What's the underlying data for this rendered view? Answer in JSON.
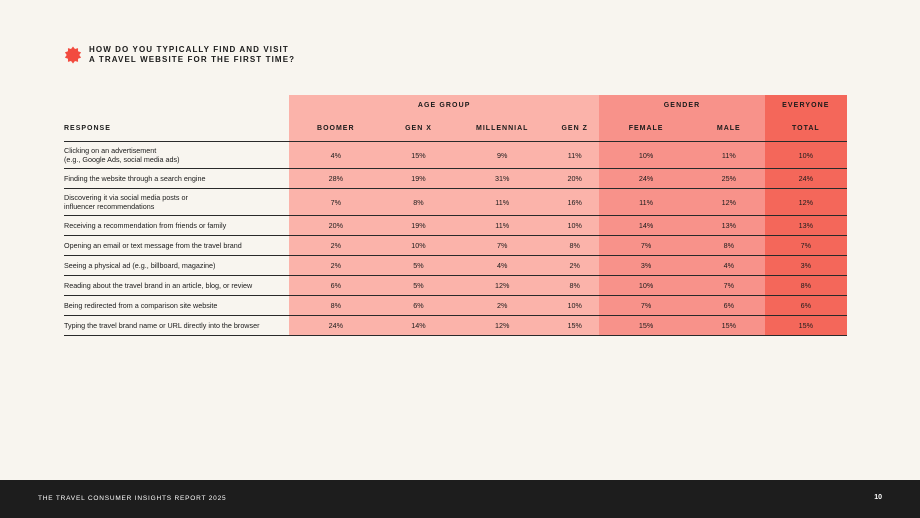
{
  "title": "HOW DO YOU TYPICALLY FIND AND VISIT\nA TRAVEL WEBSITE FOR THE FIRST TIME?",
  "groups": {
    "age": "AGE GROUP",
    "gender": "GENDER",
    "everyone": "EVERYONE"
  },
  "columns": [
    "RESPONSE",
    "BOOMER",
    "GEN X",
    "MILLENNIAL",
    "GEN Z",
    "FEMALE",
    "MALE",
    "TOTAL"
  ],
  "rows": [
    {
      "label": "Clicking on an advertisement\n(e.g., Google Ads, social media ads)",
      "values": [
        "4%",
        "15%",
        "9%",
        "11%",
        "10%",
        "11%",
        "10%"
      ]
    },
    {
      "label": "Finding the website through a search engine",
      "values": [
        "28%",
        "19%",
        "31%",
        "20%",
        "24%",
        "25%",
        "24%"
      ]
    },
    {
      "label": "Discovering it via social media posts or\ninfluencer recommendations",
      "values": [
        "7%",
        "8%",
        "11%",
        "16%",
        "11%",
        "12%",
        "12%"
      ]
    },
    {
      "label": "Receiving a recommendation from friends or family",
      "values": [
        "20%",
        "19%",
        "11%",
        "10%",
        "14%",
        "13%",
        "13%"
      ]
    },
    {
      "label": "Opening an email or text message from the travel brand",
      "values": [
        "2%",
        "10%",
        "7%",
        "8%",
        "7%",
        "8%",
        "7%"
      ]
    },
    {
      "label": "Seeing a physical ad (e.g., billboard, magazine)",
      "values": [
        "2%",
        "5%",
        "4%",
        "2%",
        "3%",
        "4%",
        "3%"
      ]
    },
    {
      "label": "Reading about the travel brand in an article, blog, or review",
      "values": [
        "6%",
        "5%",
        "12%",
        "8%",
        "10%",
        "7%",
        "8%"
      ]
    },
    {
      "label": "Being redirected from a comparison site website",
      "values": [
        "8%",
        "6%",
        "2%",
        "10%",
        "7%",
        "6%",
        "6%"
      ]
    },
    {
      "label": "Typing the travel brand name or URL directly into the browser",
      "values": [
        "24%",
        "14%",
        "12%",
        "15%",
        "15%",
        "15%",
        "15%"
      ]
    }
  ],
  "colors": {
    "background": "#f8f5ef",
    "age_group": "#fbb3aa",
    "gender": "#f8928a",
    "everyone": "#f4675a",
    "burst": "#f24b3f",
    "footer": "#1d1d1d"
  },
  "footer": {
    "report": "THE TRAVEL CONSUMER INSIGHTS REPORT 2025",
    "page": "10"
  }
}
